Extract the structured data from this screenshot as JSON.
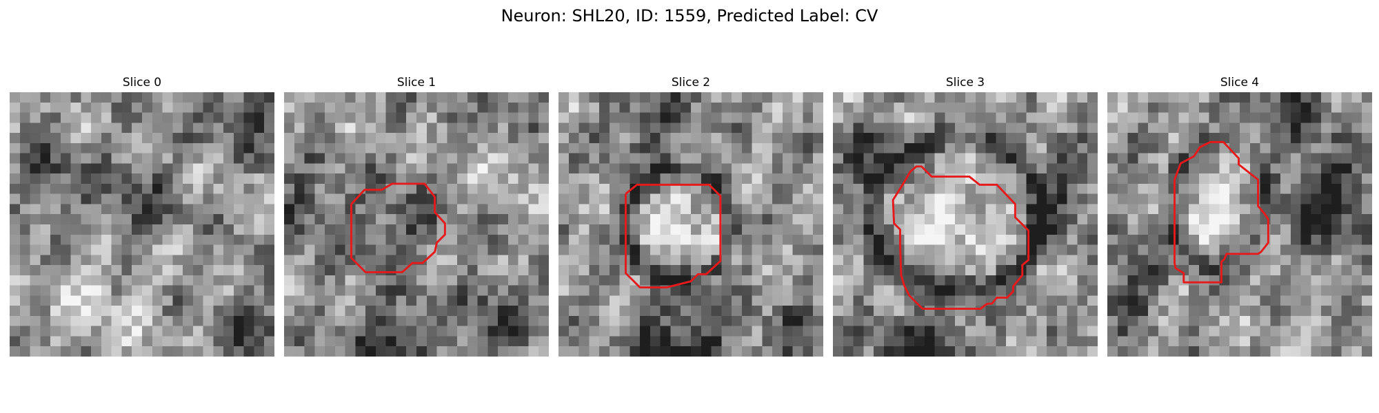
{
  "figure": {
    "title": "Neuron: SHL20, ID: 1559, Predicted Label: CV"
  },
  "colors": {
    "contour": "#e41a1c",
    "background": "#ffffff"
  },
  "panels": [
    {
      "title": "Slice 0",
      "grid_size": 26,
      "contour": []
    },
    {
      "title": "Slice 1",
      "grid_size": 26,
      "contour": [
        [
          6.6,
          11.0
        ],
        [
          7.9,
          9.6
        ],
        [
          9.6,
          9.6
        ],
        [
          10.6,
          9.0
        ],
        [
          13.8,
          9.0
        ],
        [
          14.8,
          10.3
        ],
        [
          14.8,
          11.8
        ],
        [
          15.8,
          12.9
        ],
        [
          15.8,
          14.0
        ],
        [
          15.0,
          14.8
        ],
        [
          14.8,
          15.7
        ],
        [
          13.6,
          16.8
        ],
        [
          12.6,
          16.8
        ],
        [
          11.6,
          17.7
        ],
        [
          8.0,
          17.7
        ],
        [
          6.6,
          16.3
        ],
        [
          6.6,
          11.0
        ]
      ]
    },
    {
      "title": "Slice 2",
      "grid_size": 26,
      "contour": [
        [
          6.6,
          10.0
        ],
        [
          7.7,
          9.1
        ],
        [
          14.8,
          9.1
        ],
        [
          15.9,
          10.2
        ],
        [
          15.9,
          16.6
        ],
        [
          14.5,
          17.9
        ],
        [
          13.7,
          17.9
        ],
        [
          13.0,
          18.6
        ],
        [
          10.6,
          19.2
        ],
        [
          8.0,
          19.2
        ],
        [
          6.6,
          17.8
        ],
        [
          6.6,
          10.0
        ]
      ]
    },
    {
      "title": "Slice 3",
      "grid_size": 26,
      "contour": [
        [
          6.9,
          9.0
        ],
        [
          7.6,
          7.8
        ],
        [
          8.2,
          7.3
        ],
        [
          8.7,
          7.3
        ],
        [
          9.7,
          8.3
        ],
        [
          13.4,
          8.3
        ],
        [
          14.4,
          9.1
        ],
        [
          16.1,
          9.1
        ],
        [
          17.9,
          11.0
        ],
        [
          17.9,
          12.3
        ],
        [
          19.2,
          13.6
        ],
        [
          19.2,
          16.5
        ],
        [
          18.6,
          17.0
        ],
        [
          18.6,
          18.0
        ],
        [
          17.7,
          19.1
        ],
        [
          17.7,
          19.6
        ],
        [
          17.1,
          20.2
        ],
        [
          16.1,
          20.2
        ],
        [
          15.6,
          20.8
        ],
        [
          15.2,
          20.8
        ],
        [
          15.0,
          20.9
        ],
        [
          14.5,
          21.3
        ],
        [
          8.8,
          21.3
        ],
        [
          7.5,
          20.0
        ],
        [
          7.0,
          19.0
        ],
        [
          6.7,
          18.0
        ],
        [
          6.6,
          15.0
        ],
        [
          6.6,
          13.5
        ],
        [
          6.0,
          12.9
        ],
        [
          5.9,
          10.6
        ],
        [
          6.9,
          9.0
        ]
      ]
    },
    {
      "title": "Slice 4",
      "grid_size": 26,
      "contour": [
        [
          6.6,
          8.6
        ],
        [
          7.2,
          7.0
        ],
        [
          8.5,
          6.3
        ],
        [
          9.1,
          5.4
        ],
        [
          10.1,
          4.9
        ],
        [
          11.4,
          4.9
        ],
        [
          12.9,
          6.5
        ],
        [
          12.9,
          7.1
        ],
        [
          14.8,
          8.6
        ],
        [
          14.8,
          11.2
        ],
        [
          15.4,
          11.9
        ],
        [
          15.8,
          12.5
        ],
        [
          15.8,
          14.8
        ],
        [
          15.1,
          15.7
        ],
        [
          14.8,
          15.9
        ],
        [
          11.7,
          15.9
        ],
        [
          11.5,
          16.4
        ],
        [
          11.2,
          16.7
        ],
        [
          11.2,
          18.7
        ],
        [
          7.5,
          18.7
        ],
        [
          7.5,
          17.8
        ],
        [
          6.7,
          17.3
        ],
        [
          6.6,
          16.8
        ],
        [
          6.6,
          8.6
        ]
      ]
    }
  ]
}
